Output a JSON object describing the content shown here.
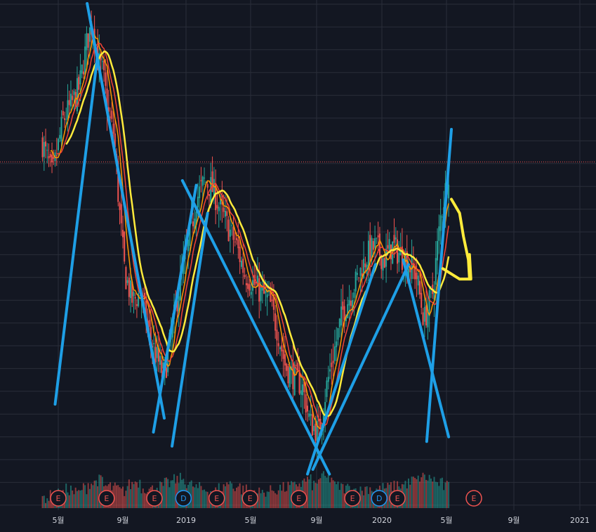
{
  "chart_data": {
    "type": "candlestick",
    "title": "",
    "subtitle": "",
    "xlabel": "",
    "ylabel": "",
    "x_ticks": [
      "5월",
      "9월",
      "2019",
      "5월",
      "9월",
      "2020",
      "5월",
      "9월",
      "2021"
    ],
    "x_tick_dates": [
      "2018-05-01",
      "2018-09-01",
      "2019-01-01",
      "2019-05-01",
      "2019-09-01",
      "2020-01-01",
      "2020-05-01",
      "2020-09-01",
      "2021-01-01"
    ],
    "y_range": [
      0,
      100
    ],
    "grid": true,
    "last_price_line": 66,
    "price_series": {
      "name": "",
      "dates": [
        "2018-04-01",
        "2018-04-20",
        "2018-05-10",
        "2018-05-25",
        "2018-06-10",
        "2018-06-25",
        "2018-07-05",
        "2018-07-15",
        "2018-07-25",
        "2018-08-05",
        "2018-08-15",
        "2018-08-25",
        "2018-09-05",
        "2018-09-20",
        "2018-10-05",
        "2018-10-20",
        "2018-11-05",
        "2018-11-20",
        "2018-12-05",
        "2018-12-20",
        "2019-01-05",
        "2019-01-20",
        "2019-02-05",
        "2019-02-20",
        "2019-03-05",
        "2019-03-20",
        "2019-04-05",
        "2019-04-20",
        "2019-05-05",
        "2019-05-20",
        "2019-06-05",
        "2019-06-20",
        "2019-07-05",
        "2019-07-20",
        "2019-08-05",
        "2019-08-20",
        "2019-09-05",
        "2019-09-20",
        "2019-10-05",
        "2019-10-20",
        "2019-11-05",
        "2019-11-20",
        "2019-12-05",
        "2019-12-20",
        "2020-01-05",
        "2020-01-20",
        "2020-02-05",
        "2020-02-20",
        "2020-03-05",
        "2020-03-20",
        "2020-04-05",
        "2020-04-20",
        "2020-05-05"
      ],
      "values": [
        70,
        63,
        75,
        78,
        82,
        92,
        96,
        88,
        85,
        76,
        72,
        56,
        42,
        36,
        38,
        30,
        24,
        20,
        30,
        40,
        48,
        58,
        62,
        60,
        56,
        52,
        48,
        42,
        40,
        38,
        36,
        30,
        22,
        20,
        18,
        10,
        8,
        18,
        26,
        34,
        38,
        42,
        46,
        48,
        45,
        48,
        46,
        44,
        42,
        32,
        38,
        54,
        64
      ]
    },
    "moving_averages": [
      {
        "name": "",
        "color": "#ff9800",
        "period": 5
      },
      {
        "name": "",
        "color": "#f44336",
        "period": 9
      },
      {
        "name": "",
        "color": "#ffeb3b",
        "period": 15
      }
    ],
    "volume": {
      "values": [
        3,
        4,
        5,
        8,
        6,
        9,
        12,
        14,
        10,
        9,
        7,
        11,
        13,
        9,
        8,
        10,
        12,
        14,
        15,
        11,
        9,
        8,
        7,
        9,
        12,
        10,
        8,
        7,
        6,
        7,
        8,
        9,
        10,
        12,
        14,
        11,
        16,
        15,
        10,
        9,
        8,
        7,
        9,
        8,
        9,
        10,
        11,
        12,
        14,
        16,
        15,
        12,
        10
      ]
    },
    "events": [
      {
        "label": "E",
        "kind": "earnings",
        "date": "2018-05-01"
      },
      {
        "label": "E",
        "kind": "earnings",
        "date": "2018-08-01"
      },
      {
        "label": "E",
        "kind": "earnings",
        "date": "2018-11-01"
      },
      {
        "label": "D",
        "kind": "dividend",
        "date": "2018-12-27"
      },
      {
        "label": "E",
        "kind": "earnings",
        "date": "2019-02-27"
      },
      {
        "label": "E",
        "kind": "earnings",
        "date": "2019-04-30"
      },
      {
        "label": "E",
        "kind": "earnings",
        "date": "2019-07-30"
      },
      {
        "label": "E",
        "kind": "earnings",
        "date": "2019-11-07"
      },
      {
        "label": "D",
        "kind": "dividend",
        "date": "2019-12-27"
      },
      {
        "label": "E",
        "kind": "earnings",
        "date": "2020-01-30"
      },
      {
        "label": "E",
        "kind": "earnings",
        "date": "2020-06-20"
      }
    ],
    "drawings": {
      "trend_lines_color": "#1e9fe6",
      "trend_lines": [
        {
          "from": [
            "2018-04-25",
            14
          ],
          "to": [
            "2018-07-15",
            89
          ]
        },
        {
          "from": [
            "2018-06-25",
            100
          ],
          "to": [
            "2018-11-20",
            11
          ]
        },
        {
          "from": [
            "2018-10-30",
            8
          ],
          "to": [
            "2019-01-20",
            61
          ]
        },
        {
          "from": [
            "2018-12-25",
            62
          ],
          "to": [
            "2019-09-25",
            -1
          ]
        },
        {
          "from": [
            "2018-12-05",
            5
          ],
          "to": [
            "2019-02-10",
            55
          ]
        },
        {
          "from": [
            "2019-08-15",
            -1
          ],
          "to": [
            "2019-12-20",
            44
          ]
        },
        {
          "from": [
            "2019-08-25",
            0
          ],
          "to": [
            "2020-02-20",
            44
          ]
        },
        {
          "from": [
            "2020-02-10",
            45
          ],
          "to": [
            "2020-05-05",
            7
          ]
        },
        {
          "from": [
            "2020-03-25",
            6
          ],
          "to": [
            "2020-05-10",
            73
          ]
        }
      ],
      "freehand_color": "#ffeb3b",
      "freehand_arrow": [
        [
          "2020-05-10",
          58
        ],
        [
          "2020-05-25",
          55
        ],
        [
          "2020-06-01",
          50
        ],
        [
          "2020-06-10",
          45
        ],
        [
          "2020-06-12",
          41
        ]
      ]
    },
    "colors": {
      "background": "#131722",
      "grid": "#2a2e39",
      "up": "#26a69a",
      "down": "#ef5350",
      "last_price_line": "#ef5350",
      "earnings_badge": "#ef5350",
      "dividend_badge": "#2196f3",
      "tick_text": "#d1d4dc"
    }
  }
}
